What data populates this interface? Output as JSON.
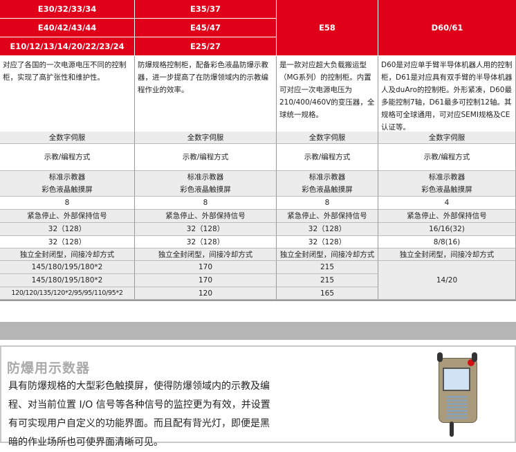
{
  "colors": {
    "header": "#e1001a",
    "band": "#b5b5b5"
  },
  "header": {
    "col1": [
      "E30/32/33/34",
      "E40/42/43/44",
      "E10/12/13/14/20/22/23/24"
    ],
    "col2": [
      "E35/37",
      "E45/47",
      "E25/27"
    ],
    "col3": "E58",
    "col4": "D60/61"
  },
  "descriptions": [
    "对应了各国的一次电源电压不同的控制柜，实现了高扩张性和维护性。",
    "防爆规格控制柜，配备彩色液晶防爆示教器，进一步提高了在防爆领域内的示教编程作业的效率。",
    "是一款对应超大负载搬运型（MG系列）的控制柜。内置可对应一次电源电压为210/400/460V的变压器，全球统一规格。",
    "D60是对应单手臂半导体机器人用的控制柜，D61是对应具有双手臂的半导体机器人及duAro的控制柜。外形紧凑，D60最多能控制7轴，D61最多可控制12轴。其规格可全球通用，可对应SEMI规格及CE认证等。"
  ],
  "rows": [
    [
      "全数字伺服",
      "全数字伺服",
      "全数字伺服",
      "全数字伺服"
    ],
    [
      "示教/编程方式",
      "示教/编程方式",
      "示教/编程方式",
      "示教/编程方式"
    ],
    [
      "标准示教器\n彩色液晶触摸屏",
      "标准示教器\n彩色液晶触摸屏",
      "标准示教器\n彩色液晶触摸屏",
      "标准示教器\n彩色液晶触摸屏"
    ],
    [
      "8",
      "8",
      "8",
      "4"
    ],
    [
      "紧急停止、外部保持信号",
      "紧急停止、外部保持信号",
      "紧急停止、外部保持信号",
      "紧急停止、外部保持信号"
    ],
    [
      "32（128）",
      "32（128）",
      "32（128）",
      "16/16(32)"
    ],
    [
      "32（128）",
      "32（128）",
      "32（128）",
      "8/8(16)"
    ],
    [
      "独立全封闭型，间接冷却方式",
      "独立全封闭型，间接冷却方式",
      "独立全封闭型，间接冷却方式",
      "独立全封闭型，间接冷却方式"
    ],
    [
      "145/180/195/180*2",
      "170",
      "215"
    ],
    [
      "145/180/195/180*2",
      "170",
      "215"
    ],
    [
      "120/120/135/120*2/95/95/110/95*2",
      "120",
      "165"
    ]
  ],
  "merged_d60": "14/20",
  "section": {
    "title": "防爆用示数器",
    "body": "具有防爆规格的大型彩色触摸屏，使得防爆领域内的示教及编程、对当前位置 I/O 信号等各种信号的监控更为有效，并设置有可实现用户自定义的功能界面。而且配有背光灯，即便是黑暗的作业场所也可使界面清晰可见。"
  }
}
